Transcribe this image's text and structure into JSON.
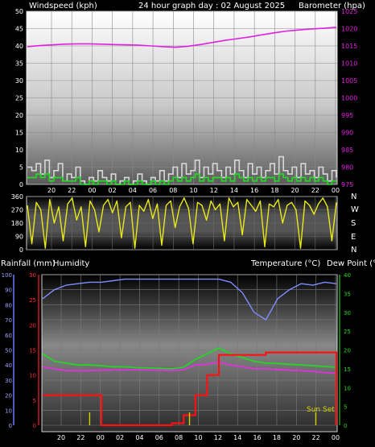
{
  "header": {
    "left": "Windspeed (kph)",
    "center": "24 hour graph day : 02 August 2025",
    "right": "Barometer (hpa)"
  },
  "lower_header": {
    "rain": "Rainfall (mm)",
    "humidity": "Humidity",
    "temperature": "Temperature (°C)",
    "dewpoint": "Dew Point (°C)"
  },
  "colors": {
    "wind_gust": "#d8d8d8",
    "wind_avg": "#22dd22",
    "barometer": "#e020e0",
    "direction": "#e8e81a",
    "humidity": "#7f8cff",
    "temperature": "#28d428",
    "dewpoint": "#e030e0",
    "rainfall": "#ff1010",
    "sunmarker": "#d4d400"
  },
  "chart_data": [
    {
      "type": "line",
      "panel": "wind_barometer",
      "x_ticks": [
        "20",
        "22",
        "00",
        "02",
        "04",
        "06",
        "08",
        "10",
        "12",
        "14",
        "16",
        "18",
        "20",
        "22",
        "00"
      ],
      "y_left_ticks": [
        0,
        5,
        10,
        15,
        20,
        25,
        30,
        35,
        40,
        45,
        50
      ],
      "y_left_range": [
        0,
        50
      ],
      "y_right_ticks": [
        975,
        980,
        985,
        990,
        995,
        1000,
        1005,
        1010,
        1015,
        1020,
        1025
      ],
      "y_right_range": [
        975,
        1025
      ],
      "series": [
        {
          "name": "Windspeed (kph)",
          "axis": "left",
          "values": [
            5,
            4,
            6,
            3,
            7,
            2,
            4,
            6,
            1,
            3,
            2,
            5,
            1,
            0,
            2,
            1,
            4,
            2,
            1,
            3,
            0,
            1,
            2,
            0,
            1,
            3,
            1,
            0,
            2,
            1,
            4,
            1,
            3,
            5,
            2,
            6,
            3,
            4,
            7,
            2,
            5,
            3,
            6,
            4,
            2,
            5,
            3,
            7,
            4,
            2,
            6,
            3,
            5,
            2,
            4,
            6,
            3,
            8,
            4,
            3,
            5,
            2,
            6,
            3,
            4,
            2,
            5,
            3,
            1,
            4,
            2
          ]
        },
        {
          "name": "Average wind",
          "axis": "left",
          "values": [
            2,
            2,
            3,
            2,
            3,
            1,
            2,
            2,
            1,
            1,
            1,
            2,
            0,
            0,
            1,
            0,
            1,
            1,
            0,
            1,
            0,
            0,
            1,
            0,
            0,
            1,
            0,
            0,
            1,
            0,
            1,
            0,
            1,
            2,
            1,
            2,
            1,
            2,
            3,
            1,
            2,
            1,
            2,
            2,
            1,
            2,
            1,
            3,
            2,
            1,
            2,
            1,
            2,
            1,
            2,
            2,
            1,
            3,
            2,
            1,
            2,
            1,
            2,
            1,
            2,
            1,
            2,
            1,
            0,
            1,
            1
          ]
        },
        {
          "name": "Barometer (hpa)",
          "axis": "right",
          "values": [
            1014.8,
            1015.1,
            1015.3,
            1015.5,
            1015.6,
            1015.6,
            1015.5,
            1015.4,
            1015.3,
            1015.2,
            1015.0,
            1014.8,
            1014.6,
            1014.9,
            1015.4,
            1016.0,
            1016.6,
            1017.1,
            1017.6,
            1018.2,
            1018.8,
            1019.3,
            1019.6,
            1019.9,
            1020.1,
            1020.4
          ]
        }
      ]
    },
    {
      "type": "scatter",
      "panel": "wind_direction",
      "x_ticks": [
        "20",
        "22",
        "00",
        "02",
        "04",
        "06",
        "08",
        "10",
        "12",
        "14",
        "16",
        "18",
        "20",
        "22",
        "00"
      ],
      "y_ticks": [
        0,
        90,
        180,
        270,
        360
      ],
      "y_range": [
        0,
        360
      ],
      "right_labels": [
        "N",
        "W",
        "S",
        "E",
        "N"
      ],
      "series": [
        {
          "name": "Wind direction",
          "values": [
            300,
            40,
            320,
            270,
            10,
            340,
            180,
            290,
            60,
            310,
            350,
            200,
            290,
            20,
            330,
            270,
            120,
            300,
            340,
            250,
            330,
            80,
            290,
            320,
            10,
            300,
            260,
            340,
            210,
            310,
            30,
            300,
            330,
            150,
            290,
            350,
            280,
            40,
            320,
            300,
            200,
            330,
            270,
            310,
            60,
            350,
            290,
            320,
            100,
            340,
            300,
            260,
            330,
            20,
            310,
            290,
            340,
            180,
            300,
            320,
            270,
            10,
            330,
            300,
            240,
            310,
            350,
            290,
            60,
            320
          ]
        }
      ]
    },
    {
      "type": "line",
      "panel": "temperature_humidity_rain",
      "x_ticks": [
        "20",
        "22",
        "00",
        "02",
        "04",
        "06",
        "08",
        "10",
        "12",
        "14",
        "16",
        "18",
        "20",
        "22",
        "00"
      ],
      "y_humidity_ticks": [
        0,
        10,
        20,
        30,
        40,
        50,
        60,
        70,
        80,
        90,
        100
      ],
      "y_humidity_range": [
        0,
        100
      ],
      "y_rain_ticks": [
        0,
        5,
        10,
        15,
        20,
        25,
        30
      ],
      "y_rain_range": [
        0,
        30
      ],
      "y_temp_ticks": [
        0,
        5,
        10,
        15,
        20,
        25,
        30,
        35,
        40
      ],
      "y_temp_range": [
        0,
        40
      ],
      "annotation": "Sun Set",
      "series": [
        {
          "name": "Humidity",
          "axis": "humidity",
          "values": [
            84,
            90,
            93,
            94,
            95,
            95,
            96,
            97,
            97,
            97,
            97,
            97,
            97,
            97,
            97,
            97,
            95,
            88,
            75,
            70,
            84,
            90,
            94,
            93,
            95,
            94
          ]
        },
        {
          "name": "Temperature (°C)",
          "axis": "temp",
          "values": [
            19,
            17,
            16.5,
            16,
            16,
            15.8,
            15.5,
            15.5,
            15.3,
            15.2,
            15.1,
            15,
            15.4,
            17.5,
            19,
            20.5,
            19,
            18,
            17,
            16.5,
            16.4,
            16.2,
            16,
            15.8,
            15.6,
            15.4
          ]
        },
        {
          "name": "Dew Point (°C)",
          "axis": "temp",
          "values": [
            15.5,
            15,
            14.5,
            14.5,
            14.5,
            14.6,
            14.7,
            14.7,
            14.8,
            14.7,
            14.6,
            14.5,
            14.8,
            16,
            16.2,
            16.8,
            16,
            15.5,
            15,
            15,
            14.8,
            14.6,
            14.5,
            14.3,
            14,
            13.8
          ]
        },
        {
          "name": "Rainfall (mm)",
          "axis": "rain",
          "values": [
            6,
            6,
            6,
            6,
            6,
            0,
            0,
            0,
            0,
            0,
            0,
            0.4,
            2,
            6,
            10,
            14,
            14,
            14,
            14,
            14.5,
            14.5,
            14.5,
            14.5,
            14.5,
            14.5,
            0
          ]
        },
        {
          "name": "Sunrise/Sunset",
          "axis": "rain",
          "marker_x": [
            0.16,
            0.5,
            0.93
          ]
        }
      ]
    }
  ]
}
